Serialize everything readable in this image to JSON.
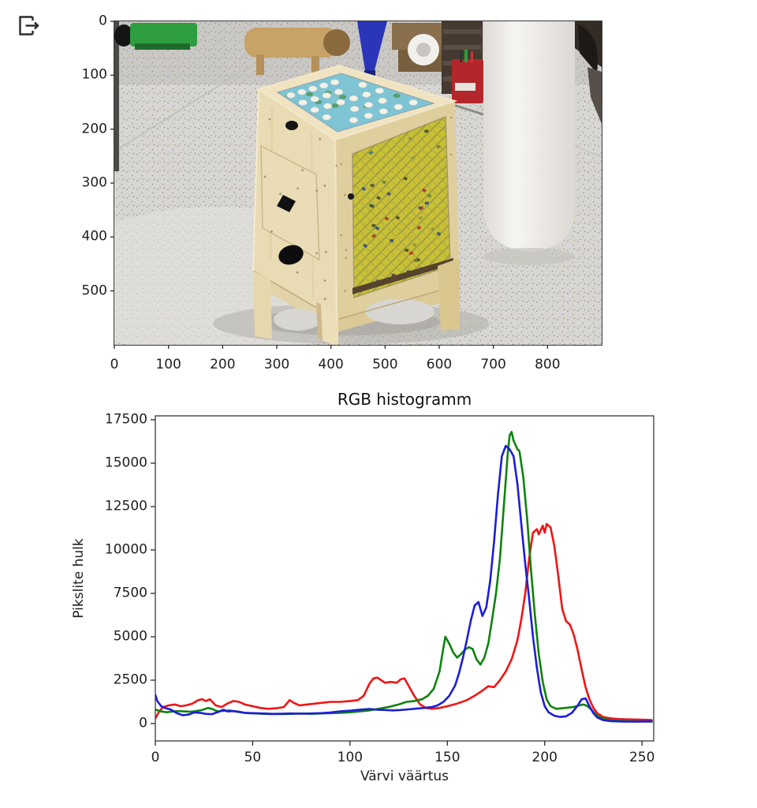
{
  "icons": {
    "export_label": "open-external"
  },
  "image_panel": {
    "alt": "Wooden game box with printed game boards standing on a speckled workshop floor",
    "x_ticks": [
      0,
      100,
      200,
      300,
      400,
      500,
      600,
      700,
      800
    ],
    "y_ticks": [
      0,
      100,
      200,
      300,
      400,
      500
    ],
    "x_range": [
      0,
      900
    ],
    "y_range": [
      0,
      600
    ],
    "scene": {
      "floor": "#d7d6d2",
      "floor_far": "#c9c8c4",
      "sheen": "#e4e3df",
      "shadow": "#aeaca6",
      "wood": "#e9dcb4",
      "wood_right": "#dfcf9e",
      "wood_top": "#efe3c2",
      "wood_rail": "#dbca97",
      "wood_leg": "#e6d7ad",
      "panel": "#eadcb6",
      "top_board": "#7fc4d4",
      "side_board": "#c9c034",
      "board_white": "#f3f1e8",
      "board_green": "#4e9a58",
      "cylinder": "#f3f1ee",
      "dark_corner": "#332c26",
      "shelf": "#443a31",
      "green_machine": "#2f9e41",
      "blue_funnel": "#2a35b8",
      "red_toolbox": "#b3272a",
      "cardboard": "#8a6f4c",
      "tape_roll": "#f2f0ec",
      "wood_object": "#c7a368",
      "black_item": "#141414",
      "slot_dark": "#55432e"
    }
  },
  "chart_data": {
    "type": "line",
    "title": "RGB histogramm",
    "xlabel": "Värvi väärtus",
    "ylabel": "Pikslite hulk",
    "xlim": [
      0,
      256
    ],
    "ylim": [
      0,
      17500
    ],
    "x_ticks": [
      0,
      50,
      100,
      150,
      200,
      250
    ],
    "y_ticks": [
      0,
      2500,
      5000,
      7500,
      10000,
      12500,
      15000,
      17500
    ],
    "grid": false,
    "legend_position": "none",
    "series": [
      {
        "name": "red",
        "color": "#f01515",
        "points": [
          [
            0,
            300
          ],
          [
            2,
            700
          ],
          [
            4,
            950
          ],
          [
            7,
            1050
          ],
          [
            10,
            1100
          ],
          [
            13,
            1000
          ],
          [
            16,
            1050
          ],
          [
            19,
            1150
          ],
          [
            22,
            1350
          ],
          [
            24,
            1400
          ],
          [
            26,
            1300
          ],
          [
            28,
            1400
          ],
          [
            31,
            1050
          ],
          [
            34,
            950
          ],
          [
            37,
            1150
          ],
          [
            40,
            1300
          ],
          [
            43,
            1250
          ],
          [
            46,
            1100
          ],
          [
            50,
            1000
          ],
          [
            54,
            900
          ],
          [
            58,
            850
          ],
          [
            62,
            880
          ],
          [
            66,
            950
          ],
          [
            69,
            1350
          ],
          [
            71,
            1200
          ],
          [
            74,
            1050
          ],
          [
            78,
            1100
          ],
          [
            82,
            1150
          ],
          [
            86,
            1200
          ],
          [
            90,
            1250
          ],
          [
            95,
            1250
          ],
          [
            100,
            1300
          ],
          [
            104,
            1350
          ],
          [
            107,
            1600
          ],
          [
            110,
            2300
          ],
          [
            112,
            2600
          ],
          [
            114,
            2650
          ],
          [
            116,
            2500
          ],
          [
            118,
            2350
          ],
          [
            121,
            2400
          ],
          [
            124,
            2350
          ],
          [
            126,
            2550
          ],
          [
            128,
            2600
          ],
          [
            130,
            2200
          ],
          [
            133,
            1600
          ],
          [
            136,
            1100
          ],
          [
            139,
            900
          ],
          [
            142,
            850
          ],
          [
            146,
            900
          ],
          [
            150,
            1000
          ],
          [
            155,
            1150
          ],
          [
            160,
            1350
          ],
          [
            164,
            1600
          ],
          [
            168,
            1900
          ],
          [
            171,
            2150
          ],
          [
            174,
            2100
          ],
          [
            177,
            2500
          ],
          [
            180,
            3000
          ],
          [
            183,
            3700
          ],
          [
            186,
            4800
          ],
          [
            188,
            6000
          ],
          [
            190,
            7500
          ],
          [
            192,
            9500
          ],
          [
            194,
            11000
          ],
          [
            196,
            11200
          ],
          [
            197,
            10900
          ],
          [
            199,
            11400
          ],
          [
            200,
            11000
          ],
          [
            201,
            11500
          ],
          [
            203,
            11300
          ],
          [
            205,
            10200
          ],
          [
            207,
            8500
          ],
          [
            209,
            6600
          ],
          [
            211,
            5900
          ],
          [
            213,
            5700
          ],
          [
            215,
            5100
          ],
          [
            217,
            4200
          ],
          [
            219,
            3100
          ],
          [
            221,
            2100
          ],
          [
            223,
            1400
          ],
          [
            225,
            900
          ],
          [
            227,
            600
          ],
          [
            230,
            380
          ],
          [
            234,
            300
          ],
          [
            238,
            260
          ],
          [
            243,
            240
          ],
          [
            248,
            230
          ],
          [
            252,
            220
          ],
          [
            255,
            200
          ]
        ]
      },
      {
        "name": "green",
        "color": "#0e830e",
        "points": [
          [
            0,
            800
          ],
          [
            3,
            700
          ],
          [
            6,
            650
          ],
          [
            9,
            700
          ],
          [
            12,
            720
          ],
          [
            15,
            700
          ],
          [
            18,
            680
          ],
          [
            21,
            720
          ],
          [
            24,
            780
          ],
          [
            27,
            900
          ],
          [
            29,
            850
          ],
          [
            32,
            700
          ],
          [
            35,
            730
          ],
          [
            38,
            760
          ],
          [
            41,
            700
          ],
          [
            44,
            640
          ],
          [
            48,
            600
          ],
          [
            52,
            580
          ],
          [
            56,
            560
          ],
          [
            60,
            550
          ],
          [
            65,
            545
          ],
          [
            70,
            560
          ],
          [
            75,
            580
          ],
          [
            80,
            560
          ],
          [
            85,
            580
          ],
          [
            90,
            600
          ],
          [
            95,
            620
          ],
          [
            100,
            650
          ],
          [
            105,
            700
          ],
          [
            110,
            760
          ],
          [
            115,
            860
          ],
          [
            120,
            960
          ],
          [
            125,
            1100
          ],
          [
            129,
            1250
          ],
          [
            133,
            1300
          ],
          [
            137,
            1400
          ],
          [
            140,
            1600
          ],
          [
            143,
            2000
          ],
          [
            146,
            3000
          ],
          [
            148,
            4400
          ],
          [
            149,
            5000
          ],
          [
            151,
            4600
          ],
          [
            153,
            4100
          ],
          [
            155,
            3800
          ],
          [
            157,
            4000
          ],
          [
            159,
            4250
          ],
          [
            161,
            4400
          ],
          [
            163,
            4300
          ],
          [
            165,
            3700
          ],
          [
            167,
            3400
          ],
          [
            169,
            3800
          ],
          [
            171,
            4600
          ],
          [
            173,
            6000
          ],
          [
            175,
            7500
          ],
          [
            177,
            9500
          ],
          [
            179,
            12500
          ],
          [
            181,
            15500
          ],
          [
            182,
            16600
          ],
          [
            183,
            16800
          ],
          [
            184,
            16300
          ],
          [
            186,
            15800
          ],
          [
            187,
            15700
          ],
          [
            189,
            14200
          ],
          [
            191,
            11800
          ],
          [
            193,
            8800
          ],
          [
            195,
            6200
          ],
          [
            197,
            4000
          ],
          [
            199,
            2400
          ],
          [
            201,
            1400
          ],
          [
            203,
            1000
          ],
          [
            206,
            850
          ],
          [
            209,
            880
          ],
          [
            212,
            920
          ],
          [
            215,
            960
          ],
          [
            218,
            1050
          ],
          [
            220,
            1100
          ],
          [
            222,
            1000
          ],
          [
            224,
            800
          ],
          [
            226,
            550
          ],
          [
            228,
            380
          ],
          [
            231,
            250
          ],
          [
            235,
            180
          ],
          [
            240,
            150
          ],
          [
            246,
            130
          ],
          [
            251,
            120
          ],
          [
            255,
            110
          ]
        ]
      },
      {
        "name": "blue",
        "color": "#1d1dd8",
        "points": [
          [
            0,
            1650
          ],
          [
            1,
            1300
          ],
          [
            3,
            1000
          ],
          [
            5,
            900
          ],
          [
            8,
            800
          ],
          [
            11,
            600
          ],
          [
            14,
            480
          ],
          [
            17,
            520
          ],
          [
            20,
            640
          ],
          [
            23,
            620
          ],
          [
            26,
            560
          ],
          [
            29,
            540
          ],
          [
            33,
            700
          ],
          [
            35,
            800
          ],
          [
            37,
            700
          ],
          [
            40,
            720
          ],
          [
            43,
            680
          ],
          [
            46,
            620
          ],
          [
            50,
            600
          ],
          [
            55,
            580
          ],
          [
            60,
            560
          ],
          [
            65,
            570
          ],
          [
            70,
            580
          ],
          [
            75,
            570
          ],
          [
            80,
            580
          ],
          [
            85,
            600
          ],
          [
            90,
            640
          ],
          [
            95,
            700
          ],
          [
            100,
            740
          ],
          [
            105,
            800
          ],
          [
            110,
            840
          ],
          [
            114,
            800
          ],
          [
            118,
            780
          ],
          [
            122,
            760
          ],
          [
            126,
            780
          ],
          [
            130,
            820
          ],
          [
            134,
            860
          ],
          [
            138,
            900
          ],
          [
            142,
            950
          ],
          [
            145,
            1050
          ],
          [
            148,
            1250
          ],
          [
            151,
            1600
          ],
          [
            154,
            2200
          ],
          [
            156,
            2900
          ],
          [
            158,
            3800
          ],
          [
            160,
            4800
          ],
          [
            162,
            5900
          ],
          [
            164,
            6800
          ],
          [
            166,
            7000
          ],
          [
            168,
            6200
          ],
          [
            170,
            6700
          ],
          [
            172,
            8200
          ],
          [
            174,
            10500
          ],
          [
            176,
            13200
          ],
          [
            178,
            15400
          ],
          [
            180,
            16000
          ],
          [
            182,
            15800
          ],
          [
            184,
            15400
          ],
          [
            186,
            13800
          ],
          [
            188,
            11500
          ],
          [
            190,
            9200
          ],
          [
            192,
            7200
          ],
          [
            194,
            5000
          ],
          [
            196,
            3200
          ],
          [
            198,
            1800
          ],
          [
            200,
            1000
          ],
          [
            202,
            650
          ],
          [
            205,
            450
          ],
          [
            208,
            380
          ],
          [
            211,
            420
          ],
          [
            214,
            620
          ],
          [
            217,
            1050
          ],
          [
            219,
            1400
          ],
          [
            221,
            1450
          ],
          [
            223,
            1000
          ],
          [
            225,
            600
          ],
          [
            227,
            350
          ],
          [
            230,
            200
          ],
          [
            234,
            140
          ],
          [
            240,
            120
          ],
          [
            247,
            110
          ],
          [
            255,
            130
          ]
        ]
      }
    ]
  }
}
